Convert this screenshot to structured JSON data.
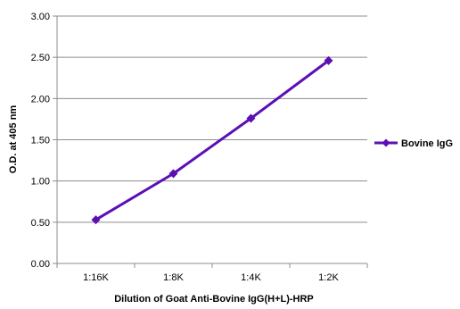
{
  "chart_data": {
    "type": "line",
    "title": "",
    "xlabel": "Dilution of Goat Anti-Bovine IgG(H+L)-HRP",
    "ylabel": "O.D. at 405 nm",
    "categories": [
      "1:16K",
      "1:8K",
      "1:4K",
      "1:2K"
    ],
    "ylim": [
      0,
      3
    ],
    "yticks": [
      "0.00",
      "0.50",
      "1.00",
      "1.50",
      "2.00",
      "2.50",
      "3.00"
    ],
    "grid": true,
    "legend_position": "right",
    "series": [
      {
        "name": "Bovine IgG",
        "values": [
          0.53,
          1.09,
          1.76,
          2.46
        ],
        "color": "#5b0fb5"
      }
    ]
  }
}
